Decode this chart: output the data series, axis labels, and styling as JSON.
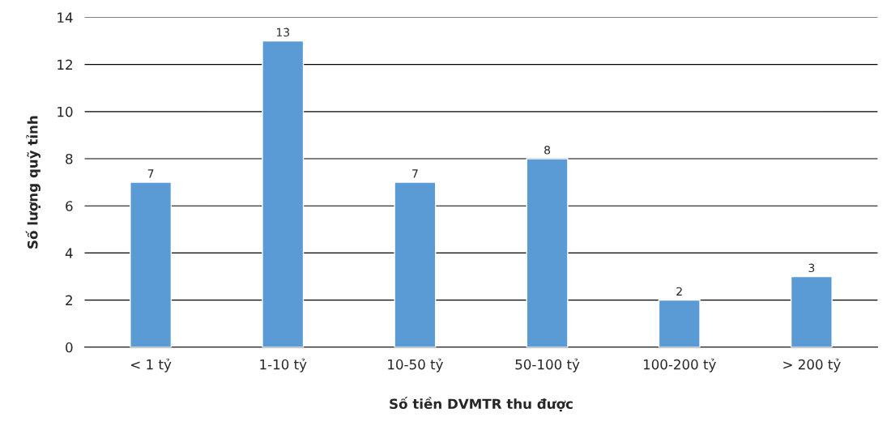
{
  "chart_data": {
    "type": "bar",
    "xlabel": "Số tiền DVMTR thu được",
    "ylabel": "Số lượng quỹ tỉnh",
    "categories": [
      "< 1 tỷ",
      "1-10 tỷ",
      "10-50 tỷ",
      "50-100 tỷ",
      "100-200 tỷ",
      "> 200 tỷ"
    ],
    "values": [
      7,
      13,
      7,
      8,
      2,
      3
    ],
    "color": "#5b9bd5",
    "ylim": [
      0,
      14
    ],
    "yticks": [
      0,
      2,
      4,
      6,
      8,
      10,
      12,
      14
    ],
    "grid": "y",
    "data_labels": true
  }
}
